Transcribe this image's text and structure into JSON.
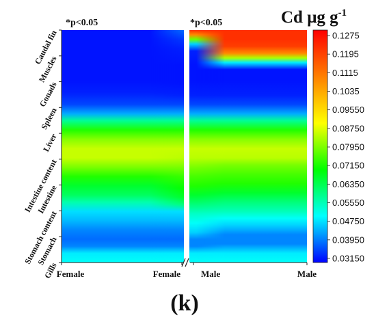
{
  "chart_data": {
    "type": "heatmap",
    "colorbar_title_main": "Cd μg g",
    "colorbar_title_sup": "-1",
    "panel_label": "(k)",
    "significance_labels": [
      "*p<0.05",
      "*p<0.05"
    ],
    "x_labels": [
      "Female",
      "Female",
      "Male",
      "Male"
    ],
    "y_labels": [
      "Gills",
      "Stomach",
      "Stomach content",
      "Intestine",
      "Intestine content",
      "Liver",
      "Spleen",
      "Gonads",
      "Muscles",
      "Caudal fin"
    ],
    "colorbar_ticks": [
      "0.1275",
      "0.1195",
      "0.1115",
      "0.1035",
      "0.09550",
      "0.08750",
      "0.07950",
      "0.07150",
      "0.06350",
      "0.05550",
      "0.04750",
      "0.03950",
      "0.03150"
    ],
    "vmin": 0.0315,
    "vmax": 0.1315,
    "colormap": [
      "#0000ff",
      "#00ffff",
      "#00ff00",
      "#ffff00",
      "#ff8000",
      "#ff0000"
    ],
    "profiles": {
      "female_left": [
        [
          0.0,
          0.052
        ],
        [
          0.04,
          0.05
        ],
        [
          0.07,
          0.042
        ],
        [
          0.1,
          0.04
        ],
        [
          0.14,
          0.042
        ],
        [
          0.18,
          0.046
        ],
        [
          0.22,
          0.049
        ],
        [
          0.26,
          0.058
        ],
        [
          0.29,
          0.064
        ],
        [
          0.33,
          0.068
        ],
        [
          0.37,
          0.074
        ],
        [
          0.41,
          0.081
        ],
        [
          0.45,
          0.087
        ],
        [
          0.49,
          0.087
        ],
        [
          0.53,
          0.082
        ],
        [
          0.57,
          0.074
        ],
        [
          0.61,
          0.06
        ],
        [
          0.64,
          0.045
        ],
        [
          0.68,
          0.037
        ],
        [
          0.73,
          0.034
        ],
        [
          0.78,
          0.033
        ],
        [
          0.85,
          0.033
        ],
        [
          0.92,
          0.033
        ],
        [
          1.0,
          0.033
        ]
      ],
      "female_right": [
        [
          0.0,
          0.052
        ],
        [
          0.04,
          0.05
        ],
        [
          0.07,
          0.042
        ],
        [
          0.1,
          0.04
        ],
        [
          0.14,
          0.042
        ],
        [
          0.18,
          0.046
        ],
        [
          0.22,
          0.049
        ],
        [
          0.25,
          0.062
        ],
        [
          0.28,
          0.068
        ],
        [
          0.32,
          0.072
        ],
        [
          0.37,
          0.076
        ],
        [
          0.41,
          0.081
        ],
        [
          0.45,
          0.086
        ],
        [
          0.49,
          0.087
        ],
        [
          0.53,
          0.082
        ],
        [
          0.57,
          0.074
        ],
        [
          0.61,
          0.06
        ],
        [
          0.64,
          0.045
        ],
        [
          0.68,
          0.037
        ],
        [
          0.72,
          0.034
        ],
        [
          0.77,
          0.033
        ],
        [
          0.85,
          0.033
        ],
        [
          0.92,
          0.034
        ],
        [
          0.96,
          0.036
        ],
        [
          1.0,
          0.04
        ]
      ],
      "male_left": [
        [
          0.0,
          0.052
        ],
        [
          0.04,
          0.05
        ],
        [
          0.07,
          0.042
        ],
        [
          0.1,
          0.042
        ],
        [
          0.13,
          0.048
        ],
        [
          0.17,
          0.052
        ],
        [
          0.21,
          0.056
        ],
        [
          0.25,
          0.062
        ],
        [
          0.29,
          0.068
        ],
        [
          0.33,
          0.074
        ],
        [
          0.37,
          0.077
        ],
        [
          0.41,
          0.081
        ],
        [
          0.45,
          0.086
        ],
        [
          0.49,
          0.087
        ],
        [
          0.53,
          0.082
        ],
        [
          0.57,
          0.074
        ],
        [
          0.61,
          0.06
        ],
        [
          0.64,
          0.045
        ],
        [
          0.68,
          0.037
        ],
        [
          0.72,
          0.034
        ],
        [
          0.78,
          0.033
        ],
        [
          0.85,
          0.033
        ],
        [
          0.91,
          0.034
        ],
        [
          0.94,
          0.048
        ],
        [
          0.96,
          0.08
        ],
        [
          0.98,
          0.11
        ],
        [
          1.0,
          0.124
        ]
      ],
      "male_right": [
        [
          0.0,
          0.052
        ],
        [
          0.04,
          0.05
        ],
        [
          0.08,
          0.042
        ],
        [
          0.12,
          0.042
        ],
        [
          0.16,
          0.048
        ],
        [
          0.19,
          0.052
        ],
        [
          0.22,
          0.057
        ],
        [
          0.26,
          0.062
        ],
        [
          0.3,
          0.068
        ],
        [
          0.34,
          0.074
        ],
        [
          0.38,
          0.077
        ],
        [
          0.42,
          0.081
        ],
        [
          0.45,
          0.086
        ],
        [
          0.49,
          0.087
        ],
        [
          0.53,
          0.082
        ],
        [
          0.57,
          0.074
        ],
        [
          0.61,
          0.06
        ],
        [
          0.64,
          0.045
        ],
        [
          0.68,
          0.037
        ],
        [
          0.72,
          0.034
        ],
        [
          0.78,
          0.033
        ],
        [
          0.83,
          0.033
        ],
        [
          0.86,
          0.05
        ],
        [
          0.88,
          0.085
        ],
        [
          0.9,
          0.11
        ],
        [
          0.93,
          0.122
        ],
        [
          0.96,
          0.124
        ],
        [
          1.0,
          0.124
        ]
      ]
    }
  }
}
